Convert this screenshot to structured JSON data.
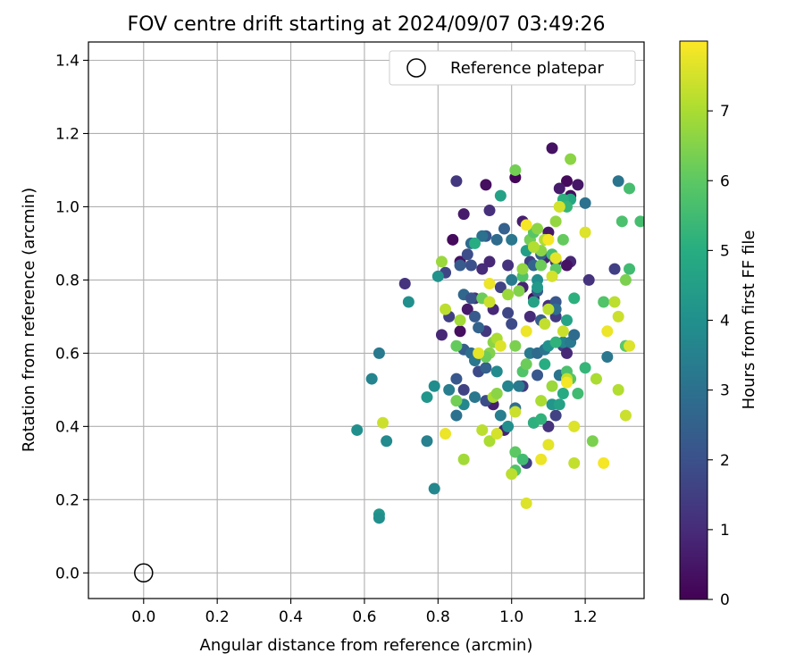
{
  "chart_data": {
    "type": "scatter",
    "title": "FOV centre drift starting at 2024/09/07 03:49:26",
    "xlabel": "Angular distance from reference (arcmin)",
    "ylabel": "Rotation from reference (arcmin)",
    "xlim": [
      -0.15,
      1.36
    ],
    "ylim": [
      -0.07,
      1.45
    ],
    "xticks": [
      "0.0",
      "0.2",
      "0.4",
      "0.6",
      "0.8",
      "1.0",
      "1.2"
    ],
    "yticks": [
      "0.0",
      "0.2",
      "0.4",
      "0.6",
      "0.8",
      "1.0",
      "1.2",
      "1.4"
    ],
    "grid": true,
    "legend": {
      "placement": "top-right",
      "entries": [
        {
          "label": "Reference platepar",
          "marker": "open-circle"
        }
      ]
    },
    "reference_point": {
      "x": 0.0,
      "y": 0.0
    },
    "colorbar": {
      "label": "Hours from first FF file",
      "colormap": "viridis",
      "min": 0,
      "max": 8,
      "ticks": [
        "0",
        "1",
        "2",
        "3",
        "4",
        "5",
        "6",
        "7"
      ]
    },
    "colormap_stops": [
      "#440154",
      "#472c7a",
      "#3b518b",
      "#2c718e",
      "#21908d",
      "#27ad81",
      "#5cc863",
      "#aadc32",
      "#fde725"
    ],
    "points": [
      [
        1.11,
        1.16,
        0.4
      ],
      [
        1.15,
        1.07,
        0.2
      ],
      [
        1.13,
        1.05,
        0.6
      ],
      [
        1.18,
        1.06,
        0.5
      ],
      [
        1.16,
        1.03,
        0.3
      ],
      [
        1.01,
        1.08,
        0.1
      ],
      [
        0.93,
        1.06,
        0.3
      ],
      [
        0.85,
        1.07,
        1.3
      ],
      [
        0.94,
        0.99,
        1.1
      ],
      [
        1.03,
        0.96,
        0.7
      ],
      [
        0.87,
        0.98,
        0.6
      ],
      [
        1.1,
        0.93,
        0.5
      ],
      [
        0.84,
        0.91,
        0.2
      ],
      [
        1.28,
        0.83,
        1.5
      ],
      [
        1.21,
        0.8,
        1.2
      ],
      [
        1.16,
        0.85,
        0.9
      ],
      [
        1.15,
        0.84,
        0.4
      ],
      [
        1.12,
        0.85,
        1.3
      ],
      [
        1.09,
        0.86,
        0.8
      ],
      [
        1.05,
        0.85,
        1.5
      ],
      [
        0.99,
        0.84,
        1.2
      ],
      [
        0.94,
        0.85,
        0.9
      ],
      [
        0.92,
        0.83,
        1.0
      ],
      [
        0.86,
        0.85,
        0.4
      ],
      [
        0.82,
        0.82,
        1.7
      ],
      [
        0.71,
        0.79,
        1.2
      ],
      [
        0.97,
        0.78,
        1.6
      ],
      [
        1.03,
        0.78,
        0.8
      ],
      [
        1.06,
        0.75,
        0.3
      ],
      [
        1.1,
        0.73,
        1.1
      ],
      [
        1.08,
        0.69,
        0.6
      ],
      [
        1.12,
        0.7,
        1.4
      ],
      [
        0.99,
        0.71,
        1.7
      ],
      [
        0.95,
        0.72,
        0.9
      ],
      [
        0.9,
        0.75,
        1.1
      ],
      [
        0.88,
        0.72,
        0.6
      ],
      [
        0.86,
        0.66,
        0.3
      ],
      [
        0.83,
        0.7,
        1.5
      ],
      [
        0.81,
        0.65,
        0.9
      ],
      [
        0.93,
        0.66,
        1.3
      ],
      [
        0.96,
        0.63,
        0.2
      ],
      [
        1.0,
        0.68,
        1.8
      ],
      [
        1.05,
        0.7,
        1.0
      ],
      [
        1.14,
        0.62,
        1.5
      ],
      [
        1.15,
        0.6,
        0.9
      ],
      [
        0.91,
        0.55,
        1.8
      ],
      [
        0.87,
        0.5,
        1.6
      ],
      [
        0.95,
        0.46,
        0.7
      ],
      [
        1.04,
        0.3,
        1.5
      ],
      [
        1.06,
        0.41,
        1.1
      ],
      [
        0.98,
        0.39,
        0.8
      ],
      [
        1.1,
        0.4,
        1.2
      ],
      [
        1.12,
        0.43,
        1.6
      ],
      [
        1.03,
        0.51,
        1.4
      ],
      [
        0.93,
        0.47,
        1.9
      ],
      [
        0.98,
        0.94,
        2.5
      ],
      [
        0.93,
        0.92,
        2.2
      ],
      [
        0.89,
        0.9,
        2.8
      ],
      [
        0.92,
        0.92,
        3.0
      ],
      [
        0.88,
        0.87,
        1.9
      ],
      [
        0.86,
        0.84,
        2.3
      ],
      [
        0.89,
        0.84,
        2.0
      ],
      [
        0.87,
        0.76,
        2.7
      ],
      [
        0.89,
        0.75,
        2.1
      ],
      [
        0.9,
        0.7,
        2.3
      ],
      [
        0.91,
        0.67,
        2.6
      ],
      [
        0.87,
        0.61,
        2.4
      ],
      [
        0.89,
        0.6,
        2.9
      ],
      [
        0.9,
        0.58,
        3.2
      ],
      [
        0.93,
        0.56,
        2.5
      ],
      [
        0.83,
        0.5,
        3.4
      ],
      [
        0.85,
        0.53,
        2.2
      ],
      [
        0.85,
        0.43,
        3.0
      ],
      [
        0.9,
        0.48,
        3.2
      ],
      [
        0.87,
        0.46,
        3.7
      ],
      [
        0.77,
        0.36,
        3.5
      ],
      [
        0.79,
        0.23,
        3.7
      ],
      [
        0.64,
        0.6,
        3.3
      ],
      [
        0.62,
        0.53,
        3.6
      ],
      [
        0.66,
        0.36,
        3.8
      ],
      [
        0.58,
        0.39,
        4.0
      ],
      [
        0.64,
        0.16,
        4.2
      ],
      [
        0.64,
        0.15,
        4.0
      ],
      [
        0.72,
        0.74,
        4.0
      ],
      [
        0.8,
        0.81,
        4.1
      ],
      [
        0.77,
        0.48,
        4.2
      ],
      [
        0.79,
        0.51,
        3.9
      ],
      [
        0.96,
        0.55,
        3.8
      ],
      [
        0.99,
        0.51,
        3.6
      ],
      [
        1.02,
        0.51,
        3.3
      ],
      [
        0.97,
        0.43,
        3.4
      ],
      [
        0.99,
        0.4,
        4.0
      ],
      [
        1.01,
        0.45,
        2.9
      ],
      [
        1.05,
        0.6,
        3.3
      ],
      [
        1.07,
        0.6,
        2.8
      ],
      [
        1.07,
        0.54,
        2.2
      ],
      [
        1.09,
        0.61,
        3.1
      ],
      [
        1.08,
        0.69,
        2.4
      ],
      [
        1.07,
        0.77,
        2.3
      ],
      [
        1.12,
        0.74,
        2.2
      ],
      [
        1.06,
        0.84,
        2.6
      ],
      [
        1.08,
        0.87,
        2.4
      ],
      [
        1.0,
        0.8,
        3.3
      ],
      [
        1.0,
        0.91,
        3.2
      ],
      [
        0.96,
        0.91,
        2.8
      ],
      [
        1.09,
        0.91,
        3.0
      ],
      [
        1.2,
        1.01,
        3.0
      ],
      [
        1.26,
        0.59,
        3.2
      ],
      [
        1.29,
        1.07,
        3.1
      ],
      [
        1.31,
        0.62,
        3.8
      ],
      [
        1.13,
        0.54,
        3.1
      ],
      [
        1.14,
        0.63,
        3.6
      ],
      [
        1.16,
        0.63,
        3.3
      ],
      [
        1.17,
        0.65,
        2.8
      ],
      [
        1.12,
        0.72,
        2.9
      ],
      [
        1.05,
        0.91,
        4.1
      ],
      [
        1.07,
        0.8,
        3.9
      ],
      [
        1.07,
        0.78,
        4.3
      ],
      [
        1.04,
        0.88,
        4.5
      ],
      [
        0.97,
        1.03,
        4.6
      ],
      [
        0.9,
        0.9,
        5.0
      ],
      [
        1.06,
        0.74,
        4.6
      ],
      [
        1.1,
        0.62,
        4.1
      ],
      [
        1.11,
        0.46,
        4.2
      ],
      [
        1.13,
        0.46,
        4.6
      ],
      [
        1.14,
        0.49,
        4.9
      ],
      [
        1.06,
        0.41,
        5.1
      ],
      [
        1.08,
        0.42,
        5.2
      ],
      [
        1.09,
        0.57,
        5.0
      ],
      [
        1.12,
        0.63,
        5.2
      ],
      [
        1.15,
        0.69,
        4.7
      ],
      [
        1.16,
        1.02,
        4.8
      ],
      [
        1.14,
        1.02,
        5.1
      ],
      [
        1.15,
        1.0,
        5.3
      ],
      [
        1.17,
        0.75,
        5.1
      ],
      [
        1.2,
        0.56,
        5.3
      ],
      [
        1.18,
        0.49,
        5.5
      ],
      [
        1.15,
        0.55,
        5.7
      ],
      [
        1.16,
        0.53,
        5.9
      ],
      [
        1.03,
        0.83,
        5.1
      ],
      [
        1.03,
        0.81,
        5.8
      ],
      [
        1.08,
        0.84,
        6.2
      ],
      [
        1.12,
        0.83,
        6.0
      ],
      [
        1.11,
        0.87,
        5.6
      ],
      [
        1.05,
        0.91,
        6.3
      ],
      [
        1.06,
        0.93,
        5.9
      ],
      [
        1.14,
        0.91,
        6.1
      ],
      [
        1.08,
        0.88,
        6.6
      ],
      [
        1.06,
        0.89,
        7.1
      ],
      [
        1.12,
        0.96,
        6.7
      ],
      [
        1.13,
        1.0,
        6.9
      ],
      [
        1.16,
        1.13,
        6.6
      ],
      [
        1.01,
        1.1,
        6.3
      ],
      [
        1.25,
        0.74,
        5.8
      ],
      [
        1.3,
        0.96,
        5.7
      ],
      [
        1.32,
        0.83,
        5.5
      ],
      [
        1.32,
        1.05,
        5.6
      ],
      [
        1.31,
        0.62,
        6.0
      ],
      [
        1.31,
        0.8,
        6.4
      ],
      [
        1.35,
        0.96,
        5.6
      ],
      [
        1.01,
        0.28,
        5.8
      ],
      [
        1.01,
        0.33,
        6.0
      ],
      [
        1.03,
        0.31,
        5.5
      ],
      [
        1.03,
        0.55,
        5.8
      ],
      [
        1.04,
        0.57,
        6.2
      ],
      [
        1.01,
        0.62,
        6.4
      ],
      [
        0.95,
        0.63,
        6.6
      ],
      [
        0.94,
        0.6,
        6.5
      ],
      [
        0.93,
        0.59,
        6.2
      ],
      [
        0.95,
        0.48,
        7.0
      ],
      [
        0.96,
        0.49,
        6.6
      ],
      [
        0.94,
        0.36,
        7.0
      ],
      [
        0.92,
        0.39,
        7.2
      ],
      [
        0.87,
        0.31,
        6.9
      ],
      [
        0.85,
        0.47,
        6.3
      ],
      [
        0.85,
        0.62,
        6.1
      ],
      [
        0.86,
        0.69,
        6.9
      ],
      [
        0.82,
        0.72,
        7.2
      ],
      [
        0.81,
        0.85,
        6.8
      ],
      [
        0.92,
        0.75,
        6.2
      ],
      [
        0.94,
        0.74,
        7.4
      ],
      [
        0.96,
        0.64,
        7.0
      ],
      [
        0.99,
        0.76,
        6.8
      ],
      [
        1.02,
        0.77,
        6.5
      ],
      [
        1.03,
        0.83,
        6.7
      ],
      [
        1.07,
        0.94,
        6.6
      ],
      [
        1.09,
        0.91,
        7.1
      ],
      [
        1.09,
        0.68,
        7.3
      ],
      [
        1.11,
        0.81,
        7.5
      ],
      [
        1.12,
        0.86,
        7.7
      ],
      [
        1.14,
        0.66,
        7.4
      ],
      [
        1.1,
        0.72,
        7.2
      ],
      [
        1.08,
        0.47,
        7.0
      ],
      [
        1.11,
        0.51,
        6.8
      ],
      [
        1.15,
        0.53,
        7.3
      ],
      [
        1.17,
        0.4,
        7.6
      ],
      [
        1.17,
        0.3,
        7.3
      ],
      [
        1.2,
        0.93,
        7.6
      ],
      [
        1.23,
        0.53,
        7.0
      ],
      [
        1.28,
        0.74,
        7.2
      ],
      [
        1.29,
        0.7,
        7.4
      ],
      [
        1.29,
        0.5,
        7.1
      ],
      [
        1.31,
        0.43,
        7.4
      ],
      [
        1.32,
        0.62,
        7.6
      ],
      [
        1.26,
        0.66,
        7.8
      ],
      [
        1.25,
        0.3,
        7.9
      ],
      [
        1.22,
        0.36,
        6.4
      ],
      [
        1.1,
        0.35,
        7.7
      ],
      [
        1.08,
        0.31,
        7.8
      ],
      [
        1.04,
        0.19,
        7.6
      ],
      [
        1.01,
        0.44,
        7.4
      ],
      [
        1.0,
        0.27,
        7.2
      ],
      [
        0.96,
        0.38,
        7.5
      ],
      [
        0.94,
        0.79,
        7.8
      ],
      [
        0.91,
        0.6,
        7.7
      ],
      [
        0.82,
        0.38,
        7.8
      ],
      [
        0.65,
        0.41,
        7.4
      ],
      [
        1.04,
        0.95,
        7.9
      ],
      [
        1.1,
        0.91,
        7.9
      ],
      [
        1.13,
        1.0,
        7.5
      ],
      [
        1.15,
        0.52,
        7.9
      ],
      [
        1.04,
        0.66,
        7.8
      ],
      [
        0.97,
        0.62,
        7.6
      ]
    ]
  }
}
